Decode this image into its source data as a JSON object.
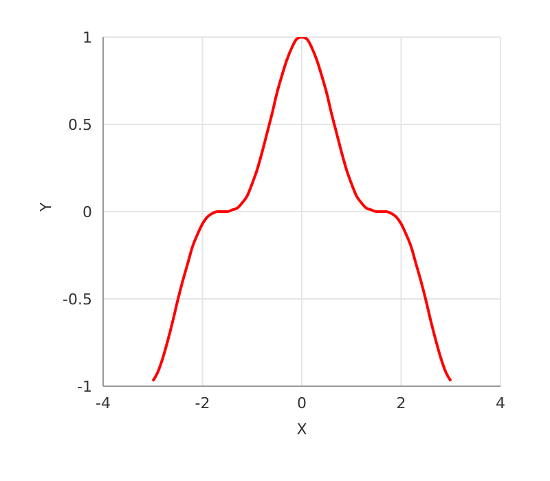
{
  "chart_data": {
    "type": "line",
    "xlabel": "X",
    "ylabel": "Y",
    "x": [
      -3,
      -2.9,
      -2.8,
      -2.7,
      -2.6,
      -2.5,
      -2.4,
      -2.3,
      -2.2,
      -2.1,
      -2,
      -1.9,
      -1.8,
      -1.7,
      -1.6,
      -1.5,
      -1.4,
      -1.3,
      -1.2,
      -1.1,
      -1,
      -0.9,
      -0.8,
      -0.7,
      -0.6,
      -0.5,
      -0.4,
      -0.3,
      -0.2,
      -0.1,
      0,
      0.1,
      0.2,
      0.3,
      0.4,
      0.5,
      0.6,
      0.7,
      0.8,
      0.9,
      1,
      1.1,
      1.2,
      1.3,
      1.4,
      1.5,
      1.6,
      1.7,
      1.8,
      1.9,
      2,
      2.1,
      2.2,
      2.3,
      2.4,
      2.5,
      2.6,
      2.7,
      2.8,
      2.9,
      3
    ],
    "series": [
      {
        "color": "#ff0000",
        "values": [
          -0.97,
          -0.92,
          -0.84,
          -0.74,
          -0.63,
          -0.51,
          -0.4,
          -0.3,
          -0.2,
          -0.13,
          -0.07,
          -0.03,
          -0.01,
          0,
          0,
          0,
          0.01,
          0.02,
          0.05,
          0.09,
          0.16,
          0.24,
          0.34,
          0.45,
          0.56,
          0.68,
          0.78,
          0.87,
          0.94,
          0.99,
          1,
          0.99,
          0.94,
          0.87,
          0.78,
          0.68,
          0.56,
          0.45,
          0.34,
          0.24,
          0.16,
          0.09,
          0.05,
          0.02,
          0.01,
          0,
          0,
          0,
          -0.01,
          -0.03,
          -0.07,
          -0.13,
          -0.2,
          -0.3,
          -0.4,
          -0.51,
          -0.63,
          -0.74,
          -0.84,
          -0.92,
          -0.97
        ]
      }
    ],
    "xlim": [
      -4,
      4
    ],
    "xticks": [
      -4,
      -2,
      0,
      2,
      4
    ],
    "ylim": [
      -1,
      1
    ],
    "yticks": [
      -1,
      -0.5,
      0,
      0.5,
      1
    ],
    "grid": true,
    "legend": false,
    "marker": "none",
    "line_style": "solid"
  }
}
